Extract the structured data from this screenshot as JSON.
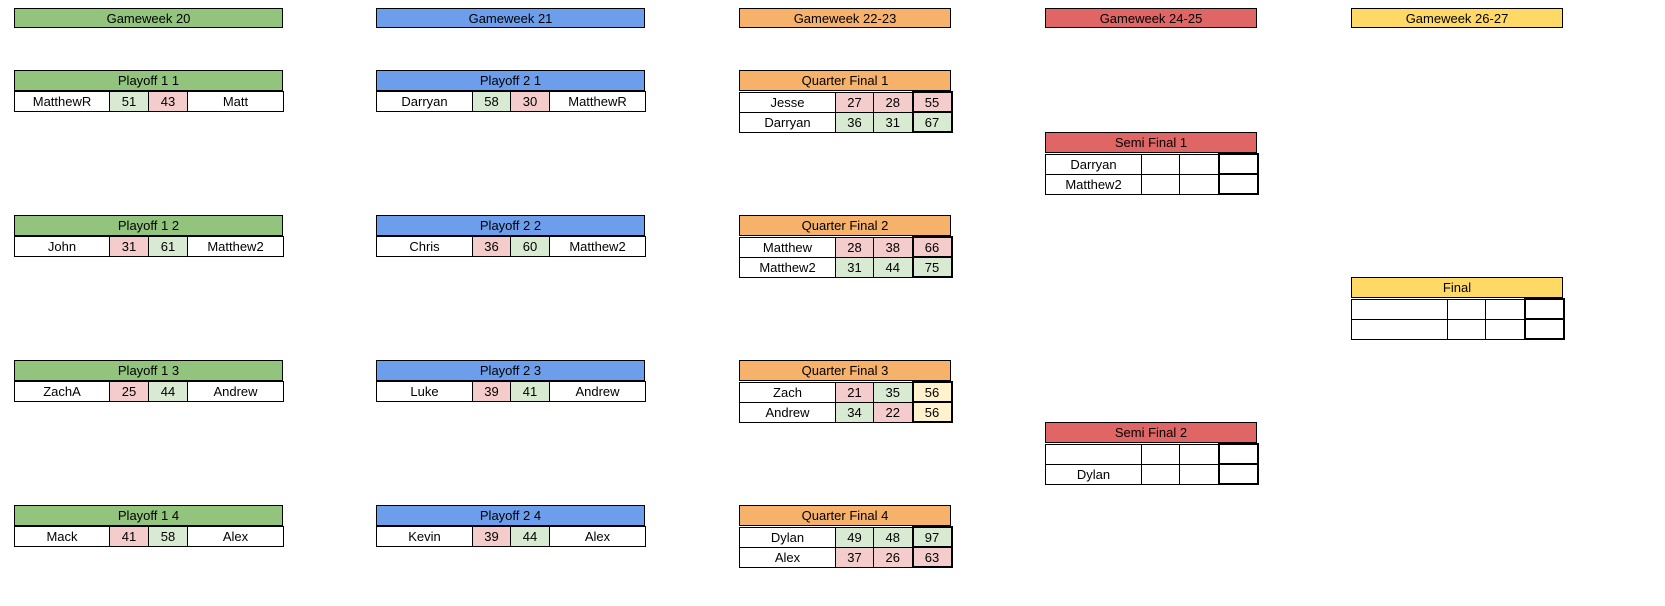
{
  "colors": {
    "green": "#92c47d",
    "blue": "#6d9eeb",
    "orange": "#f6b26b",
    "red": "#e06666",
    "yellow": "#ffd966",
    "win": "#d9ead3",
    "lose": "#f4cccc",
    "tie": "#fff2cc"
  },
  "gameweeks": [
    "Gameweek 20",
    "Gameweek 21",
    "Gameweek 22-23",
    "Gameweek 24-25",
    "Gameweek 26-27"
  ],
  "playoff1": [
    {
      "title": "Playoff 1 1",
      "home": "MatthewR",
      "home_score": "51",
      "away_score": "43",
      "away": "Matt"
    },
    {
      "title": "Playoff 1 2",
      "home": "John",
      "home_score": "31",
      "away_score": "61",
      "away": "Matthew2"
    },
    {
      "title": "Playoff 1 3",
      "home": "ZachA",
      "home_score": "25",
      "away_score": "44",
      "away": "Andrew"
    },
    {
      "title": "Playoff 1 4",
      "home": "Mack",
      "home_score": "41",
      "away_score": "58",
      "away": "Alex"
    }
  ],
  "playoff2": [
    {
      "title": "Playoff 2 1",
      "home": "Darryan",
      "home_score": "58",
      "away_score": "30",
      "away": "MatthewR"
    },
    {
      "title": "Playoff 2 2",
      "home": "Chris",
      "home_score": "36",
      "away_score": "60",
      "away": "Matthew2"
    },
    {
      "title": "Playoff 2 3",
      "home": "Luke",
      "home_score": "39",
      "away_score": "41",
      "away": "Andrew"
    },
    {
      "title": "Playoff 2 4",
      "home": "Kevin",
      "home_score": "39",
      "away_score": "44",
      "away": "Alex"
    }
  ],
  "quarters": [
    {
      "title": "Quarter Final 1",
      "p1": {
        "name": "Jesse",
        "s1": "27",
        "s2": "28",
        "total": "55"
      },
      "p2": {
        "name": "Darryan",
        "s1": "36",
        "s2": "31",
        "total": "67"
      }
    },
    {
      "title": "Quarter Final 2",
      "p1": {
        "name": "Matthew",
        "s1": "28",
        "s2": "38",
        "total": "66"
      },
      "p2": {
        "name": "Matthew2",
        "s1": "31",
        "s2": "44",
        "total": "75"
      }
    },
    {
      "title": "Quarter Final 3",
      "p1": {
        "name": "Zach",
        "s1": "21",
        "s2": "35",
        "total": "56"
      },
      "p2": {
        "name": "Andrew",
        "s1": "34",
        "s2": "22",
        "total": "56"
      }
    },
    {
      "title": "Quarter Final 4",
      "p1": {
        "name": "Dylan",
        "s1": "49",
        "s2": "48",
        "total": "97"
      },
      "p2": {
        "name": "Alex",
        "s1": "37",
        "s2": "26",
        "total": "63"
      }
    }
  ],
  "semis": [
    {
      "title": "Semi Final 1",
      "p1": {
        "name": "Darryan",
        "s1": "",
        "s2": "",
        "total": ""
      },
      "p2": {
        "name": "Matthew2",
        "s1": "",
        "s2": "",
        "total": ""
      }
    },
    {
      "title": "Semi Final 2",
      "p1": {
        "name": "",
        "s1": "",
        "s2": "",
        "total": ""
      },
      "p2": {
        "name": "Dylan",
        "s1": "",
        "s2": "",
        "total": ""
      }
    }
  ],
  "final": {
    "title": "Final",
    "p1": {
      "name": "",
      "s1": "",
      "s2": "",
      "total": ""
    },
    "p2": {
      "name": "",
      "s1": "",
      "s2": "",
      "total": ""
    }
  }
}
